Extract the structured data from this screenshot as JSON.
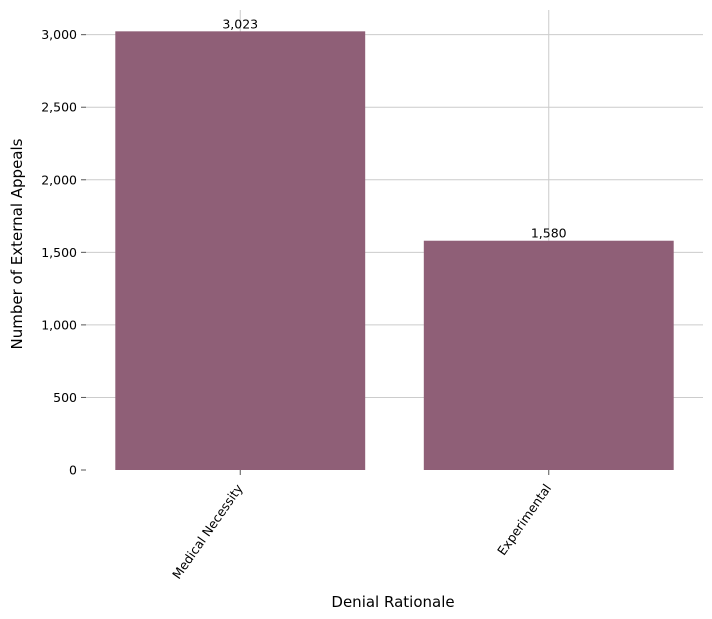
{
  "chart_data": {
    "type": "bar",
    "categories": [
      "Medical Necessity",
      "Experimental"
    ],
    "values": [
      3023,
      1580
    ],
    "value_labels": [
      "3,023",
      "1,580"
    ],
    "title": "",
    "xlabel": "Denial Rationale",
    "ylabel": "Number of External Appeals",
    "ylim": [
      0,
      3170
    ],
    "yticks": [
      0,
      500,
      1000,
      1500,
      2000,
      2500,
      3000
    ],
    "ytick_labels": [
      "0",
      "500",
      "1,000",
      "1,500",
      "2,000",
      "2,500",
      "3,000"
    ],
    "grid": true,
    "bar_color": "#8f5f77"
  }
}
